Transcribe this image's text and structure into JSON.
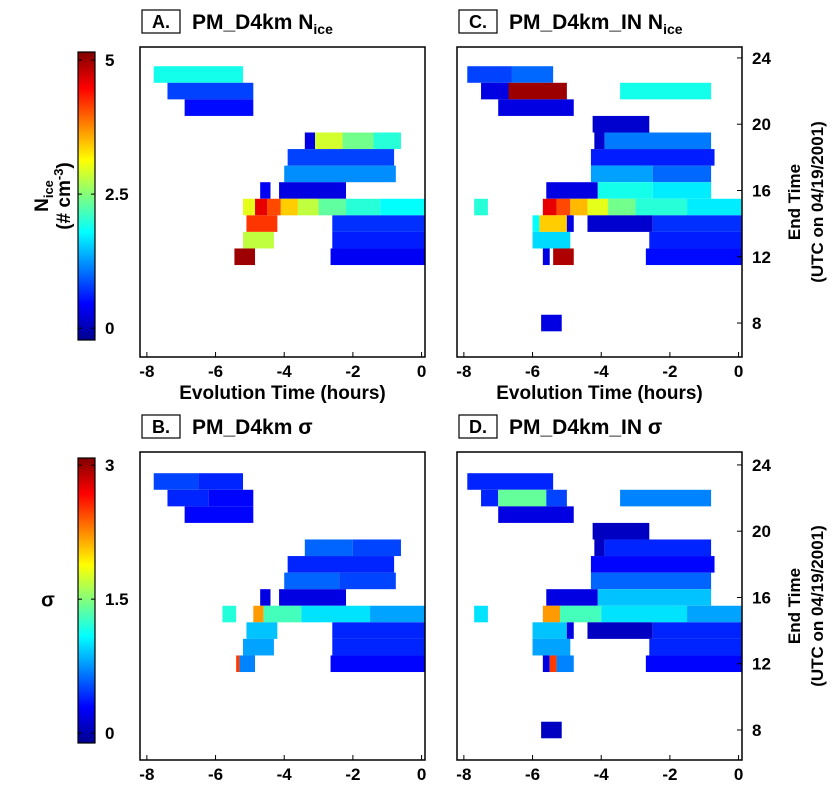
{
  "chart_data": [
    {
      "type": "heatmap",
      "label": "A.",
      "title": "PM_D4km N",
      "title_subscript": "ice",
      "xlabel": "Evolution Time (hours)",
      "xlim": [
        -8.2,
        0.1
      ],
      "xticks": [
        -8,
        -6,
        -4,
        -2,
        0
      ],
      "ylim": [
        5.95,
        24.66
      ],
      "rows": [
        {
          "end": 23,
          "x": [
            -7.8,
            -5.2
          ],
          "values": [
            1.9
          ]
        },
        {
          "end": 22,
          "x": [
            -7.4,
            -4.9
          ],
          "values": [
            0.8
          ]
        },
        {
          "end": 21,
          "x": [
            -6.9,
            -4.9
          ],
          "values": [
            0.5
          ]
        },
        {
          "end": 19,
          "x": [
            -3.4,
            -3.1,
            -2.3,
            -1.4,
            -0.6
          ],
          "values": [
            0.3,
            2.9,
            2.4,
            2.0
          ]
        },
        {
          "end": 18,
          "x": [
            -3.9,
            -0.8
          ],
          "values": [
            0.8
          ]
        },
        {
          "end": 17,
          "x": [
            -4.0,
            -0.75
          ],
          "values": [
            1.2
          ]
        },
        {
          "end": 16,
          "x": [
            -4.7,
            -4.4
          ],
          "values": [
            0.4
          ]
        },
        {
          "end": 16,
          "x": [
            -4.15,
            -2.2
          ],
          "values": [
            0.3
          ]
        },
        {
          "end": 15,
          "x": [
            -5.2,
            -4.85
          ],
          "values": [
            3.0
          ]
        },
        {
          "end": 15,
          "x": [
            -4.85,
            -4.5,
            -4.1,
            -3.6,
            -3.0,
            -2.2,
            -1.2,
            0.1
          ],
          "values": [
            4.6,
            4.1,
            3.4,
            2.8,
            2.3,
            2.0,
            1.8
          ]
        },
        {
          "end": 14,
          "x": [
            -5.1,
            -4.2
          ],
          "values": [
            4.2
          ]
        },
        {
          "end": 14,
          "x": [
            -2.6,
            0.1
          ],
          "values": [
            0.7
          ]
        },
        {
          "end": 13,
          "x": [
            -5.2,
            -4.3
          ],
          "values": [
            2.8
          ]
        },
        {
          "end": 13,
          "x": [
            -2.6,
            0.1
          ],
          "values": [
            0.6
          ]
        },
        {
          "end": 12,
          "x": [
            -5.45,
            -4.85
          ],
          "values": [
            5.0
          ]
        },
        {
          "end": 12,
          "x": [
            -2.65,
            0.1
          ],
          "values": [
            0.4
          ]
        }
      ]
    },
    {
      "type": "heatmap",
      "label": "C.",
      "title": "PM_D4km_IN N",
      "title_subscript": "ice",
      "xlabel": "Evolution Time (hours)",
      "xlim": [
        -8.2,
        0.1
      ],
      "xticks": [
        -8,
        -6,
        -4,
        -2,
        0
      ],
      "ylim": [
        5.95,
        24.66
      ],
      "yticks": [
        8,
        12,
        16,
        20,
        24
      ],
      "ylabel": [
        "End Time",
        "(UTC on 04/19/2001)"
      ],
      "rows": [
        {
          "end": 23,
          "x": [
            -7.9,
            -6.6,
            -5.4
          ],
          "values": [
            0.8,
            1.0
          ]
        },
        {
          "end": 22,
          "x": [
            -7.5,
            -6.7,
            -5.0
          ],
          "values": [
            0.3,
            5.0
          ]
        },
        {
          "end": 22,
          "x": [
            -3.45,
            -0.8
          ],
          "values": [
            1.9
          ]
        },
        {
          "end": 21,
          "x": [
            -7.0,
            -4.8
          ],
          "values": [
            0.3
          ]
        },
        {
          "end": 20,
          "x": [
            -4.25,
            -2.6
          ],
          "values": [
            0.2
          ]
        },
        {
          "end": 19,
          "x": [
            -4.2,
            -3.9,
            -0.8
          ],
          "values": [
            0.2,
            1.1
          ]
        },
        {
          "end": 18,
          "x": [
            -4.3,
            -0.7
          ],
          "values": [
            0.6
          ]
        },
        {
          "end": 17,
          "x": [
            -4.3,
            -2.5,
            -0.8
          ],
          "values": [
            1.3,
            1.0
          ]
        },
        {
          "end": 16,
          "x": [
            -5.6,
            -4.1
          ],
          "values": [
            0.3
          ]
        },
        {
          "end": 16,
          "x": [
            -4.1,
            -2.5,
            -0.8
          ],
          "values": [
            1.9,
            1.7
          ]
        },
        {
          "end": 15,
          "x": [
            -7.7,
            -7.3
          ],
          "values": [
            2.0
          ]
        },
        {
          "end": 15,
          "x": [
            -5.7,
            -5.3,
            -4.9,
            -4.4,
            -3.8,
            -3.0,
            -1.5,
            0.1
          ],
          "values": [
            4.6,
            4.1,
            3.5,
            3.0,
            2.4,
            2.0,
            1.7
          ]
        },
        {
          "end": 14,
          "x": [
            -6.0,
            -5.8,
            -5.0,
            -4.8
          ],
          "values": [
            1.8,
            3.4,
            0.3
          ]
        },
        {
          "end": 14,
          "x": [
            -4.4,
            -2.5,
            0.1
          ],
          "values": [
            0.2,
            0.7
          ]
        },
        {
          "end": 13,
          "x": [
            -6.0,
            -4.9
          ],
          "values": [
            1.6
          ]
        },
        {
          "end": 13,
          "x": [
            -2.6,
            0.1
          ],
          "values": [
            0.6
          ]
        },
        {
          "end": 12,
          "x": [
            -5.7,
            -5.5
          ],
          "values": [
            0.3
          ]
        },
        {
          "end": 12,
          "x": [
            -5.4,
            -4.8
          ],
          "values": [
            4.9
          ]
        },
        {
          "end": 12,
          "x": [
            -2.7,
            0.1
          ],
          "values": [
            0.5
          ]
        },
        {
          "end": 8,
          "x": [
            -5.75,
            -5.15
          ],
          "values": [
            0.3
          ]
        }
      ]
    },
    {
      "type": "heatmap",
      "label": "B.",
      "title": "PM_D4km σ",
      "xlabel": "Evolution Time (hours)",
      "xlim": [
        -8.2,
        0.1
      ],
      "xticks": [
        -8,
        -6,
        -4,
        -2,
        0
      ],
      "ylim": [
        6.19,
        24.78
      ],
      "rows": [
        {
          "end": 23,
          "x": [
            -7.8,
            -6.5,
            -5.2
          ],
          "values": [
            0.5,
            0.4
          ]
        },
        {
          "end": 22,
          "x": [
            -7.4,
            -6.2,
            -4.9
          ],
          "values": [
            0.4,
            0.3
          ]
        },
        {
          "end": 21,
          "x": [
            -6.9,
            -4.9
          ],
          "values": [
            0.3
          ]
        },
        {
          "end": 19,
          "x": [
            -3.4,
            -2.0,
            -0.6
          ],
          "values": [
            0.6,
            0.5
          ]
        },
        {
          "end": 18,
          "x": [
            -3.9,
            -0.8
          ],
          "values": [
            0.4
          ]
        },
        {
          "end": 17,
          "x": [
            -4.0,
            -2.4,
            -0.75
          ],
          "values": [
            0.6,
            0.5
          ]
        },
        {
          "end": 16,
          "x": [
            -4.7,
            -4.4
          ],
          "values": [
            0.2
          ]
        },
        {
          "end": 16,
          "x": [
            -4.15,
            -2.2
          ],
          "values": [
            0.2
          ]
        },
        {
          "end": 15,
          "x": [
            -5.8,
            -5.4
          ],
          "values": [
            1.2
          ]
        },
        {
          "end": 15,
          "x": [
            -4.9,
            -4.6,
            -3.5,
            -1.5,
            0.1
          ],
          "values": [
            2.2,
            1.3,
            1.0,
            0.8
          ]
        },
        {
          "end": 14,
          "x": [
            -5.1,
            -4.2
          ],
          "values": [
            0.9
          ]
        },
        {
          "end": 14,
          "x": [
            -2.6,
            0.1
          ],
          "values": [
            0.4
          ]
        },
        {
          "end": 13,
          "x": [
            -5.2,
            -4.3
          ],
          "values": [
            0.8
          ]
        },
        {
          "end": 13,
          "x": [
            -2.6,
            0.1
          ],
          "values": [
            0.4
          ]
        },
        {
          "end": 12,
          "x": [
            -5.4,
            -5.3,
            -4.85
          ],
          "values": [
            2.5,
            0.7
          ]
        },
        {
          "end": 12,
          "x": [
            -2.65,
            0.1
          ],
          "values": [
            0.3
          ]
        }
      ]
    },
    {
      "type": "heatmap",
      "label": "D.",
      "title": "PM_D4km_IN σ",
      "xlabel": "Evolution Time (hours)",
      "xlim": [
        -8.2,
        0.1
      ],
      "xticks": [
        -8,
        -6,
        -4,
        -2,
        0
      ],
      "ylim": [
        6.19,
        24.78
      ],
      "yticks": [
        8,
        12,
        16,
        20,
        24
      ],
      "ylabel": [
        "End Time",
        "(UTC on 04/19/2001)"
      ],
      "rows": [
        {
          "end": 23,
          "x": [
            -7.9,
            -5.4
          ],
          "values": [
            0.4
          ]
        },
        {
          "end": 22,
          "x": [
            -7.5,
            -7.0,
            -5.6,
            -5.0
          ],
          "values": [
            0.4,
            1.4,
            0.5
          ]
        },
        {
          "end": 22,
          "x": [
            -3.45,
            -0.8
          ],
          "values": [
            0.7
          ]
        },
        {
          "end": 21,
          "x": [
            -7.0,
            -4.8
          ],
          "values": [
            0.2
          ]
        },
        {
          "end": 20,
          "x": [
            -4.25,
            -2.6
          ],
          "values": [
            0.1
          ]
        },
        {
          "end": 19,
          "x": [
            -4.2,
            -3.9,
            -0.8
          ],
          "values": [
            0.1,
            0.4
          ]
        },
        {
          "end": 18,
          "x": [
            -4.3,
            -0.7
          ],
          "values": [
            0.3
          ]
        },
        {
          "end": 17,
          "x": [
            -4.3,
            -0.8
          ],
          "values": [
            0.6
          ]
        },
        {
          "end": 16,
          "x": [
            -5.6,
            -4.1
          ],
          "values": [
            0.2
          ]
        },
        {
          "end": 16,
          "x": [
            -4.1,
            -0.8
          ],
          "values": [
            0.9
          ]
        },
        {
          "end": 15,
          "x": [
            -7.7,
            -7.3
          ],
          "values": [
            1.0
          ]
        },
        {
          "end": 15,
          "x": [
            -5.7,
            -5.2,
            -4.0,
            -1.5,
            0.1
          ],
          "values": [
            2.2,
            1.3,
            1.0,
            0.8
          ]
        },
        {
          "end": 14,
          "x": [
            -6.0,
            -5.0,
            -4.8
          ],
          "values": [
            0.9,
            0.2
          ]
        },
        {
          "end": 14,
          "x": [
            -4.4,
            -2.5,
            0.1
          ],
          "values": [
            0.1,
            0.4
          ]
        },
        {
          "end": 13,
          "x": [
            -6.0,
            -4.9
          ],
          "values": [
            0.8
          ]
        },
        {
          "end": 13,
          "x": [
            -2.6,
            0.1
          ],
          "values": [
            0.4
          ]
        },
        {
          "end": 12,
          "x": [
            -5.7,
            -5.5,
            -5.3,
            -4.8
          ],
          "values": [
            0.2,
            2.5,
            0.7
          ]
        },
        {
          "end": 12,
          "x": [
            -2.7,
            0.1
          ],
          "values": [
            0.3
          ]
        },
        {
          "end": 8,
          "x": [
            -5.75,
            -5.15
          ],
          "values": [
            0.1
          ]
        }
      ]
    }
  ],
  "colorbars": [
    {
      "clim": [
        -0.22,
        5.15
      ],
      "ticks": [
        0,
        2.5,
        5
      ],
      "label": "N",
      "label_subscript": "ice",
      "label_line2": "(# cm",
      "label_superscript": "-3",
      "label_end": ")"
    },
    {
      "clim": [
        -0.11,
        3.08
      ],
      "ticks": [
        0,
        1.5,
        3
      ],
      "label": "σ"
    }
  ]
}
